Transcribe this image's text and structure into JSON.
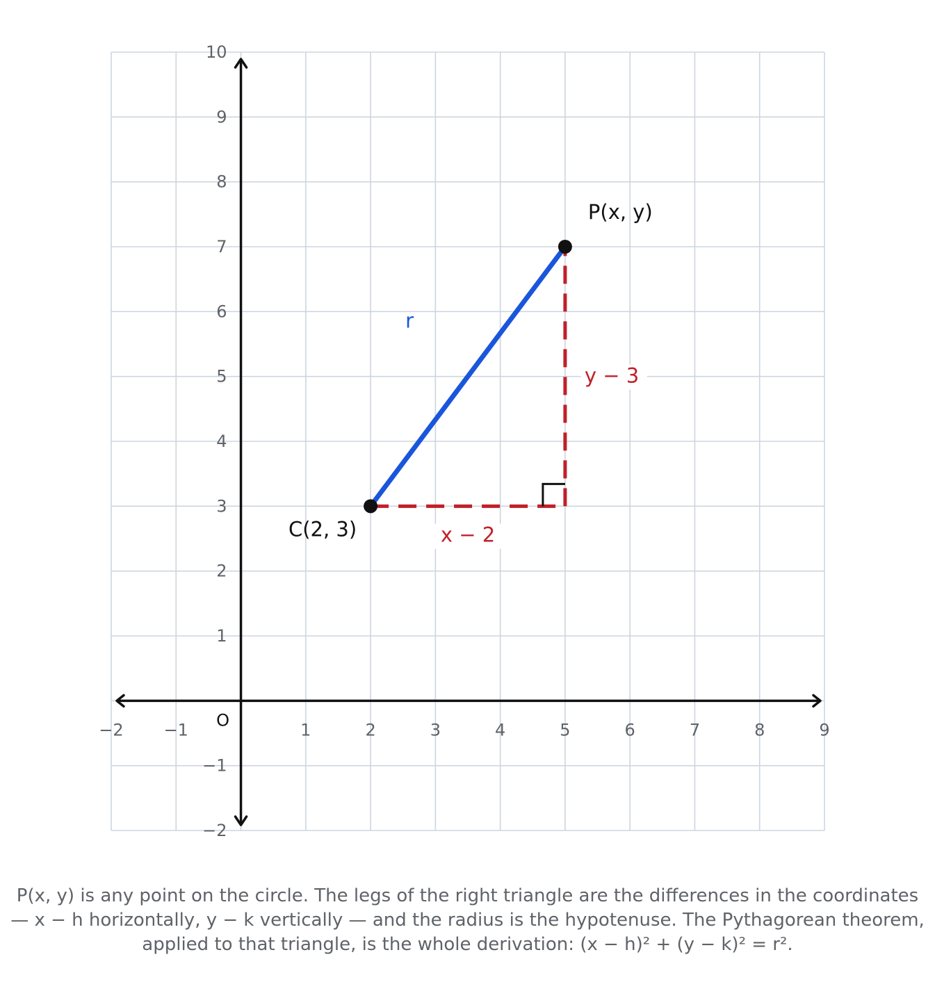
{
  "chart_data": {
    "type": "scatter",
    "xlim": [
      -2,
      9
    ],
    "ylim": [
      -2,
      10
    ],
    "grid": true,
    "x_ticks": [
      "−2",
      "−1",
      "1",
      "2",
      "3",
      "4",
      "5",
      "6",
      "7",
      "8",
      "9"
    ],
    "y_ticks": [
      "−2",
      "−1",
      "1",
      "2",
      "3",
      "4",
      "5",
      "6",
      "7",
      "8",
      "9",
      "10"
    ],
    "origin_label": "O",
    "points": [
      {
        "name": "center",
        "label": "C(2, 3)",
        "x": 2,
        "y": 3
      },
      {
        "name": "point",
        "label": "P(x, y)",
        "x": 5,
        "y": 7
      }
    ],
    "segments": [
      {
        "name": "radius",
        "label": "r",
        "from": [
          2,
          3
        ],
        "to": [
          5,
          7
        ],
        "color": "#1a56db",
        "style": "solid"
      },
      {
        "name": "horizontal-leg",
        "label": "x − 2",
        "from": [
          2,
          3
        ],
        "to": [
          5,
          3
        ],
        "color": "#c0202a",
        "style": "dashed"
      },
      {
        "name": "vertical-leg",
        "label": "y − 3",
        "from": [
          5,
          3
        ],
        "to": [
          5,
          7
        ],
        "color": "#c0202a",
        "style": "dashed"
      }
    ],
    "right_angle_at": [
      5,
      3
    ]
  },
  "caption": "P(x, y) is any point on the circle. The legs of the right triangle are the differences in the coordinates — x − h horizontally, y − k vertically — and the radius is the hypotenuse. The Pythagorean theorem, applied to that triangle, is the whole derivation: (x − h)² + (y − k)² = r².",
  "colors": {
    "grid": "#cdd5df",
    "axis": "#111111",
    "tick_text": "#5f6368",
    "radius": "#1a56db",
    "legs": "#c0202a",
    "points": "#111111"
  }
}
